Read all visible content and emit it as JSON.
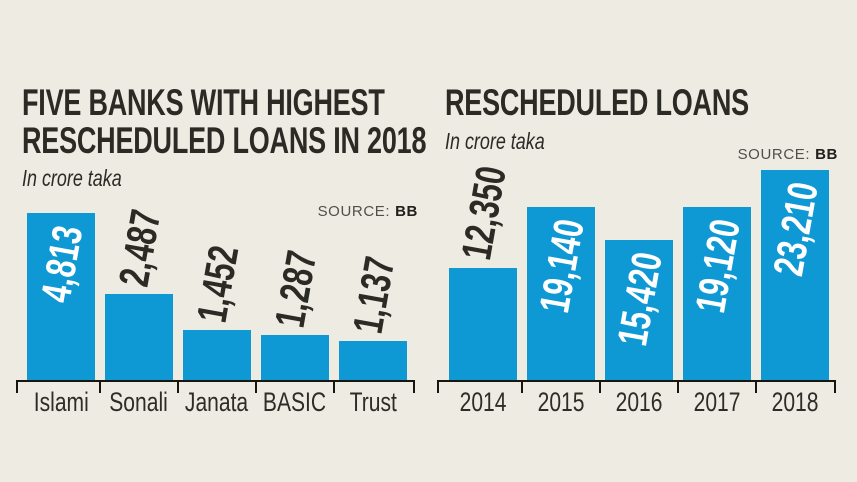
{
  "background": "#edebe2",
  "bar_color": "#0e98d4",
  "charts": [
    {
      "title_lines": [
        "FIVE BANKS WITH HIGHEST",
        "RESCHEDULED LOANS IN 2018"
      ],
      "subtitle": "In crore taka",
      "source": {
        "label": "SOURCE:",
        "value": "BB"
      }
    },
    {
      "title_lines": [
        "RESCHEDULED LOANS"
      ],
      "subtitle": "In crore taka",
      "source": {
        "label": "SOURCE:",
        "value": "BB"
      }
    }
  ],
  "chart_data": [
    {
      "type": "bar",
      "title": "FIVE BANKS WITH HIGHEST RESCHEDULED LOANS IN 2018",
      "xlabel": "",
      "ylabel": "In crore taka",
      "source": "BB",
      "categories": [
        "Islami",
        "Sonali",
        "Janata",
        "BASIC",
        "Trust"
      ],
      "values": [
        4813,
        2487,
        1452,
        1287,
        1137
      ],
      "value_labels": [
        "4,813",
        "2,487",
        "1,452",
        "1,287",
        "1,137"
      ],
      "label_placement": [
        "inside",
        "above",
        "above",
        "above",
        "above"
      ],
      "bar_color": "#0e98d4",
      "ylim": [
        0,
        5000
      ],
      "grid": false,
      "legend": false
    },
    {
      "type": "bar",
      "title": "RESCHEDULED LOANS",
      "xlabel": "",
      "ylabel": "In crore taka",
      "source": "BB",
      "categories": [
        "2014",
        "2015",
        "2016",
        "2017",
        "2018"
      ],
      "values": [
        12350,
        19140,
        15420,
        19120,
        23210
      ],
      "value_labels": [
        "12,350",
        "19,140",
        "15,420",
        "19,120",
        "23,210"
      ],
      "label_placement": [
        "above",
        "inside",
        "inside",
        "inside",
        "inside"
      ],
      "bar_color": "#0e98d4",
      "ylim": [
        0,
        24000
      ],
      "grid": false,
      "legend": false
    }
  ]
}
